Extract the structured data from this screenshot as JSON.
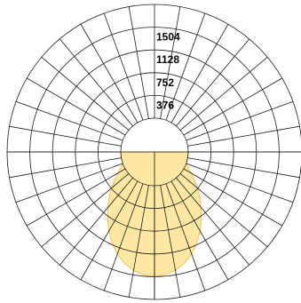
{
  "chart_data": {
    "type": "polar",
    "title": "",
    "radial_axis": {
      "range": [
        0,
        1880
      ],
      "tick_values": [
        376,
        752,
        1128,
        1504
      ],
      "tick_labels": [
        "376",
        "752",
        "1128",
        "1504"
      ]
    },
    "angular_axis": {
      "grid_step_deg": 10,
      "zero_direction": "down"
    },
    "grid": true,
    "series": [
      {
        "color_fill": "#ffe8a3",
        "color_stroke": "#f2c35c",
        "points": [
          {
            "angle": 0,
            "value": 1500
          },
          {
            "angle": 5,
            "value": 1480
          },
          {
            "angle": 10,
            "value": 1430
          },
          {
            "angle": 15,
            "value": 1350
          },
          {
            "angle": 20,
            "value": 1240
          },
          {
            "angle": 25,
            "value": 1100
          },
          {
            "angle": 30,
            "value": 950
          },
          {
            "angle": 35,
            "value": 790
          },
          {
            "angle": 40,
            "value": 640
          },
          {
            "angle": 45,
            "value": 500
          },
          {
            "angle": 50,
            "value": 370
          },
          {
            "angle": 55,
            "value": 250
          },
          {
            "angle": 60,
            "value": 150
          },
          {
            "angle": 65,
            "value": 60
          },
          {
            "angle": 70,
            "value": 0
          },
          {
            "angle": 90,
            "value": 0
          }
        ]
      }
    ]
  }
}
